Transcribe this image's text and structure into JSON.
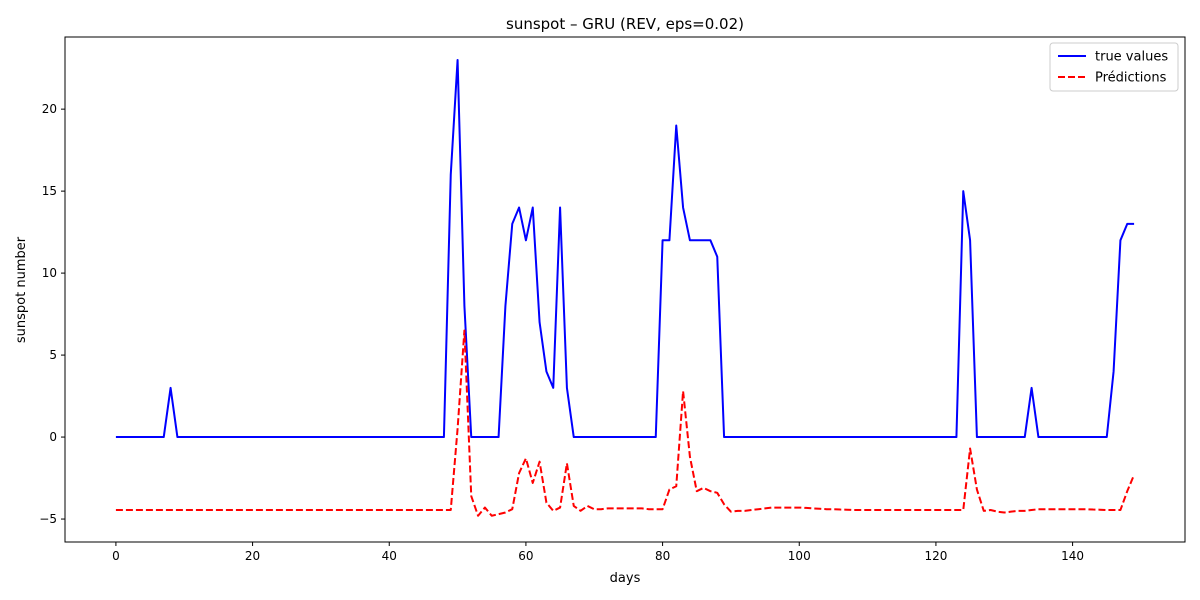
{
  "chart_data": {
    "type": "line",
    "title": "sunspot – GRU (REV, eps=0.02)",
    "xlabel": "days",
    "ylabel": "sunspot number",
    "xlim": [
      -7.45,
      156.45
    ],
    "ylim": [
      -6.4,
      24.4
    ],
    "xticks": [
      0,
      20,
      40,
      60,
      80,
      100,
      120,
      140
    ],
    "yticks": [
      -5,
      0,
      5,
      10,
      15,
      20
    ],
    "grid": false,
    "legend_position": "top-right",
    "series": [
      {
        "name": "true values",
        "color": "#0000ff",
        "style": "solid",
        "x": [
          0,
          1,
          2,
          3,
          4,
          5,
          6,
          7,
          8,
          9,
          10,
          11,
          12,
          13,
          14,
          15,
          16,
          17,
          18,
          19,
          20,
          21,
          22,
          23,
          24,
          25,
          26,
          27,
          28,
          29,
          30,
          31,
          32,
          33,
          34,
          35,
          36,
          37,
          38,
          39,
          40,
          41,
          42,
          43,
          44,
          45,
          46,
          47,
          48,
          49,
          50,
          51,
          52,
          53,
          54,
          55,
          56,
          57,
          58,
          59,
          60,
          61,
          62,
          63,
          64,
          65,
          66,
          67,
          68,
          69,
          70,
          71,
          72,
          73,
          74,
          75,
          76,
          77,
          78,
          79,
          80,
          81,
          82,
          83,
          84,
          85,
          86,
          87,
          88,
          89,
          90,
          91,
          92,
          93,
          94,
          95,
          96,
          97,
          98,
          99,
          100,
          101,
          102,
          103,
          104,
          105,
          106,
          107,
          108,
          109,
          110,
          111,
          112,
          113,
          114,
          115,
          116,
          117,
          118,
          119,
          120,
          121,
          122,
          123,
          124,
          125,
          126,
          127,
          128,
          129,
          130,
          131,
          132,
          133,
          134,
          135,
          136,
          137,
          138,
          139,
          140,
          141,
          142,
          143,
          144,
          145,
          146,
          147,
          148,
          149
        ],
        "values": [
          0,
          0,
          0,
          0,
          0,
          0,
          0,
          0,
          3,
          0,
          0,
          0,
          0,
          0,
          0,
          0,
          0,
          0,
          0,
          0,
          0,
          0,
          0,
          0,
          0,
          0,
          0,
          0,
          0,
          0,
          0,
          0,
          0,
          0,
          0,
          0,
          0,
          0,
          0,
          0,
          0,
          0,
          0,
          0,
          0,
          0,
          0,
          0,
          0,
          16,
          23,
          8,
          0,
          0,
          0,
          0,
          0,
          8,
          13,
          14,
          12,
          14,
          7,
          4,
          3,
          14,
          3,
          0,
          0,
          0,
          0,
          0,
          0,
          0,
          0,
          0,
          0,
          0,
          0,
          0,
          12,
          12,
          19,
          14,
          12,
          12,
          12,
          12,
          11,
          0,
          0,
          0,
          0,
          0,
          0,
          0,
          0,
          0,
          0,
          0,
          0,
          0,
          0,
          0,
          0,
          0,
          0,
          0,
          0,
          0,
          0,
          0,
          0,
          0,
          0,
          0,
          0,
          0,
          0,
          0,
          0,
          0,
          0,
          0,
          15,
          12,
          0,
          0,
          0,
          0,
          0,
          0,
          0,
          0,
          3,
          0,
          0,
          0,
          0,
          0,
          0,
          0,
          0,
          0,
          0,
          0,
          4,
          12,
          13,
          13
        ]
      },
      {
        "name": "Prédictions",
        "color": "#ff0000",
        "style": "dashed",
        "x": [
          0,
          1,
          2,
          3,
          4,
          5,
          6,
          7,
          8,
          9,
          10,
          11,
          12,
          13,
          14,
          15,
          16,
          17,
          18,
          19,
          20,
          21,
          22,
          23,
          24,
          25,
          26,
          27,
          28,
          29,
          30,
          31,
          32,
          33,
          34,
          35,
          36,
          37,
          38,
          39,
          40,
          41,
          42,
          43,
          44,
          45,
          46,
          47,
          48,
          49,
          50,
          51,
          52,
          53,
          54,
          55,
          56,
          57,
          58,
          59,
          60,
          61,
          62,
          63,
          64,
          65,
          66,
          67,
          68,
          69,
          70,
          71,
          72,
          73,
          74,
          75,
          76,
          77,
          78,
          79,
          80,
          81,
          82,
          83,
          84,
          85,
          86,
          87,
          88,
          89,
          90,
          91,
          92,
          93,
          94,
          95,
          96,
          97,
          98,
          99,
          100,
          101,
          102,
          103,
          104,
          105,
          106,
          107,
          108,
          109,
          110,
          111,
          112,
          113,
          114,
          115,
          116,
          117,
          118,
          119,
          120,
          121,
          122,
          123,
          124,
          125,
          126,
          127,
          128,
          129,
          130,
          131,
          132,
          133,
          134,
          135,
          136,
          137,
          138,
          139,
          140,
          141,
          142,
          143,
          144,
          145,
          146,
          147,
          148,
          149
        ],
        "values": [
          -4.45,
          -4.45,
          -4.45,
          -4.45,
          -4.45,
          -4.45,
          -4.45,
          -4.45,
          -4.45,
          -4.45,
          -4.45,
          -4.45,
          -4.45,
          -4.45,
          -4.45,
          -4.45,
          -4.45,
          -4.45,
          -4.45,
          -4.45,
          -4.45,
          -4.45,
          -4.45,
          -4.45,
          -4.45,
          -4.45,
          -4.45,
          -4.45,
          -4.45,
          -4.45,
          -4.45,
          -4.45,
          -4.45,
          -4.45,
          -4.45,
          -4.45,
          -4.45,
          -4.45,
          -4.45,
          -4.45,
          -4.45,
          -4.45,
          -4.45,
          -4.45,
          -4.45,
          -4.45,
          -4.45,
          -4.45,
          -4.45,
          -4.45,
          0.5,
          6.5,
          -3.6,
          -4.8,
          -4.3,
          -4.8,
          -4.7,
          -4.6,
          -4.4,
          -2.2,
          -1.3,
          -2.8,
          -1.5,
          -4.0,
          -4.5,
          -4.3,
          -1.6,
          -4.2,
          -4.5,
          -4.2,
          -4.4,
          -4.4,
          -4.35,
          -4.35,
          -4.35,
          -4.35,
          -4.35,
          -4.35,
          -4.4,
          -4.4,
          -4.4,
          -3.2,
          -3.0,
          2.8,
          -1.2,
          -3.3,
          -3.1,
          -3.3,
          -3.4,
          -4.1,
          -4.55,
          -4.5,
          -4.5,
          -4.45,
          -4.4,
          -4.35,
          -4.3,
          -4.3,
          -4.3,
          -4.3,
          -4.3,
          -4.32,
          -4.35,
          -4.37,
          -4.4,
          -4.4,
          -4.42,
          -4.43,
          -4.45,
          -4.45,
          -4.45,
          -4.45,
          -4.45,
          -4.45,
          -4.45,
          -4.45,
          -4.45,
          -4.45,
          -4.45,
          -4.45,
          -4.45,
          -4.45,
          -4.45,
          -4.45,
          -4.45,
          -0.7,
          -3.2,
          -4.5,
          -4.45,
          -4.55,
          -4.6,
          -4.55,
          -4.5,
          -4.5,
          -4.45,
          -4.4,
          -4.4,
          -4.4,
          -4.4,
          -4.4,
          -4.4,
          -4.4,
          -4.4,
          -4.42,
          -4.43,
          -4.45,
          -4.45,
          -4.45,
          -3.3,
          -2.3
        ]
      }
    ]
  }
}
